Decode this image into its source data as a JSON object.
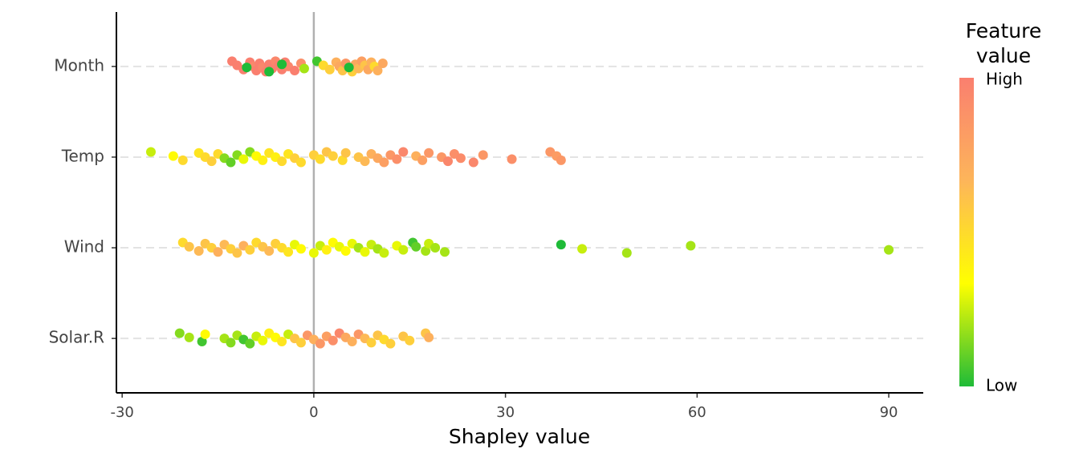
{
  "chart_data": {
    "type": "beeswarm",
    "xlabel": "Shapley value",
    "categories": [
      "Month",
      "Temp",
      "Wind",
      "Solar.R"
    ],
    "values": [
      [
        -12.8,
        -12,
        -11,
        -10,
        -9.5,
        -9,
        -8.5,
        -8,
        -7.5,
        -7,
        -6.5,
        -6,
        -5.5,
        -5,
        -4.5,
        -4,
        -3,
        -2,
        -10.5,
        -7,
        -5,
        -1.5,
        0.5,
        1.5,
        2.5,
        3.5,
        4,
        4.5,
        5,
        5.5,
        6,
        6.5,
        7,
        7.5,
        8,
        8.5,
        9,
        9.5,
        10,
        10.8,
        5.5
      ],
      [
        -25.5,
        -22,
        -20.5,
        -18,
        -17,
        -16,
        -15,
        -14,
        -13,
        -12,
        -11,
        -10,
        -9,
        -8,
        -7,
        -6,
        -5,
        -4,
        -3,
        -2,
        0,
        1,
        2,
        3,
        4.5,
        5,
        7,
        8,
        9,
        10,
        11,
        12,
        13,
        14,
        16,
        17,
        18,
        20,
        21,
        22,
        23,
        25,
        26.5,
        31,
        37,
        38,
        38.7
      ],
      [
        -20.5,
        -19.5,
        -18,
        -17,
        -16,
        -15,
        -14,
        -13,
        -12,
        -11,
        -10,
        -9,
        -8,
        -7,
        -6,
        -5,
        -4,
        -3,
        -2,
        0,
        1,
        2,
        3,
        4,
        5,
        6,
        7,
        8,
        9,
        10,
        11,
        13,
        14,
        15.5,
        16,
        17.5,
        18,
        19,
        20.5,
        38.7,
        42,
        49,
        59,
        90
      ],
      [
        -21,
        -19.5,
        -17.5,
        -17,
        -14,
        -13,
        -12,
        -11,
        -10,
        -9,
        -8,
        -7,
        -6,
        -5,
        -4,
        -3,
        -2,
        -1,
        0,
        1,
        2,
        3,
        4,
        5,
        6,
        7,
        8,
        9,
        10,
        11,
        12,
        14,
        15,
        17.5,
        18
      ]
    ],
    "feature_values": [
      [
        1,
        1,
        1,
        1,
        0.95,
        1,
        1,
        0.95,
        1,
        1,
        1,
        0.95,
        1,
        1,
        1,
        0.95,
        1,
        0.9,
        0,
        0,
        0,
        0.2,
        0.05,
        0.5,
        0.55,
        0.7,
        0.75,
        0.6,
        0.85,
        0.7,
        0.55,
        0.75,
        0.65,
        0.8,
        0.6,
        0.75,
        0.7,
        0.5,
        0.7,
        0.75,
        0
      ],
      [
        0.25,
        0.35,
        0.5,
        0.45,
        0.5,
        0.55,
        0.5,
        0.15,
        0.1,
        0.15,
        0.3,
        0.15,
        0.35,
        0.4,
        0.45,
        0.4,
        0.5,
        0.45,
        0.55,
        0.5,
        0.55,
        0.5,
        0.6,
        0.55,
        0.5,
        0.6,
        0.6,
        0.65,
        0.7,
        0.75,
        0.8,
        0.85,
        0.9,
        0.95,
        0.7,
        0.8,
        0.85,
        0.85,
        0.95,
        0.9,
        0.92,
        0.95,
        0.85,
        0.9,
        0.85,
        0.82,
        0.85
      ],
      [
        0.5,
        0.6,
        0.65,
        0.6,
        0.55,
        0.7,
        0.65,
        0.55,
        0.6,
        0.7,
        0.55,
        0.5,
        0.6,
        0.65,
        0.55,
        0.5,
        0.45,
        0.3,
        0.35,
        0.3,
        0.25,
        0.4,
        0.35,
        0.3,
        0.35,
        0.3,
        0.2,
        0.3,
        0.25,
        0.2,
        0.25,
        0.3,
        0.25,
        0.05,
        0.1,
        0.2,
        0.25,
        0.2,
        0.2,
        0,
        0.25,
        0.2,
        0.2,
        0.2
      ],
      [
        0.15,
        0.2,
        0.05,
        0.35,
        0.2,
        0.15,
        0.2,
        0.05,
        0.1,
        0.25,
        0.3,
        0.4,
        0.35,
        0.45,
        0.25,
        0.6,
        0.55,
        0.85,
        0.7,
        0.85,
        0.8,
        0.9,
        0.95,
        0.75,
        0.7,
        0.85,
        0.65,
        0.55,
        0.6,
        0.5,
        0.55,
        0.6,
        0.55,
        0.6,
        0.7
      ]
    ],
    "xlim": [
      -30.9,
      95.4
    ],
    "xticks": [
      -30,
      0,
      30,
      60,
      90
    ],
    "vline": 0,
    "grid": true,
    "legend_title": [
      "Feature",
      "value"
    ],
    "legend_high": "High",
    "legend_low": "Low",
    "colorscale": [
      "#1fbb38",
      "#ffff00",
      "#fdb55a",
      "#fa7f6f"
    ]
  }
}
